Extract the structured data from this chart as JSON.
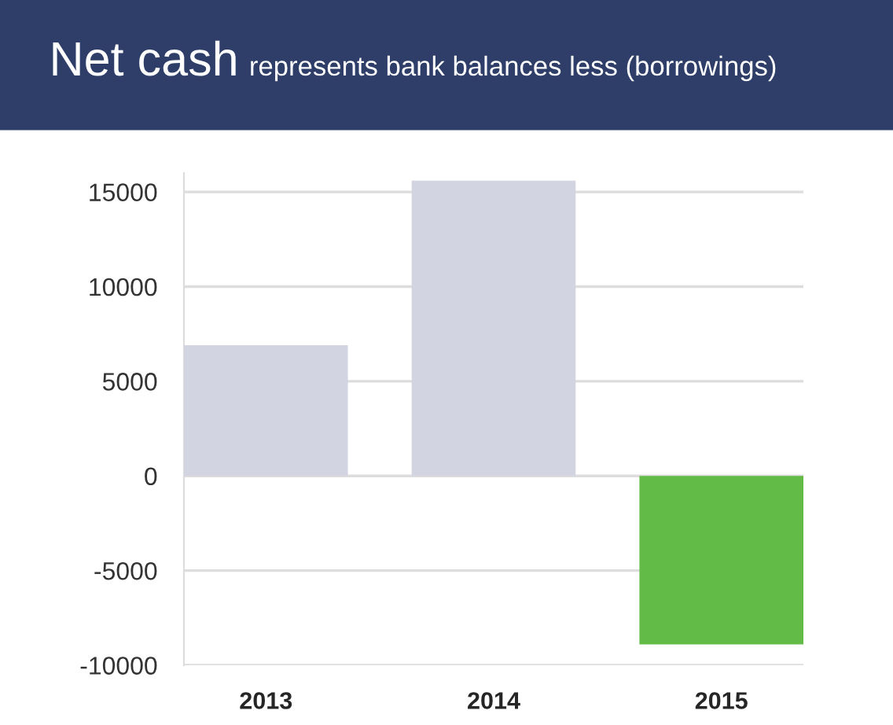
{
  "chart_data": {
    "type": "bar",
    "title": "Net cash",
    "subtitle": "represents bank balances less (borrowings)",
    "categories": [
      "2013",
      "2014",
      "2015"
    ],
    "values": [
      6900,
      15600,
      -8900
    ],
    "colors": [
      "#d2d4e2",
      "#d2d4e2",
      "#62bb47"
    ],
    "ylim": [
      -10000,
      16000
    ],
    "yticks": [
      -10000,
      -5000,
      0,
      5000,
      10000,
      15000
    ],
    "grid": "y",
    "legend": false
  }
}
